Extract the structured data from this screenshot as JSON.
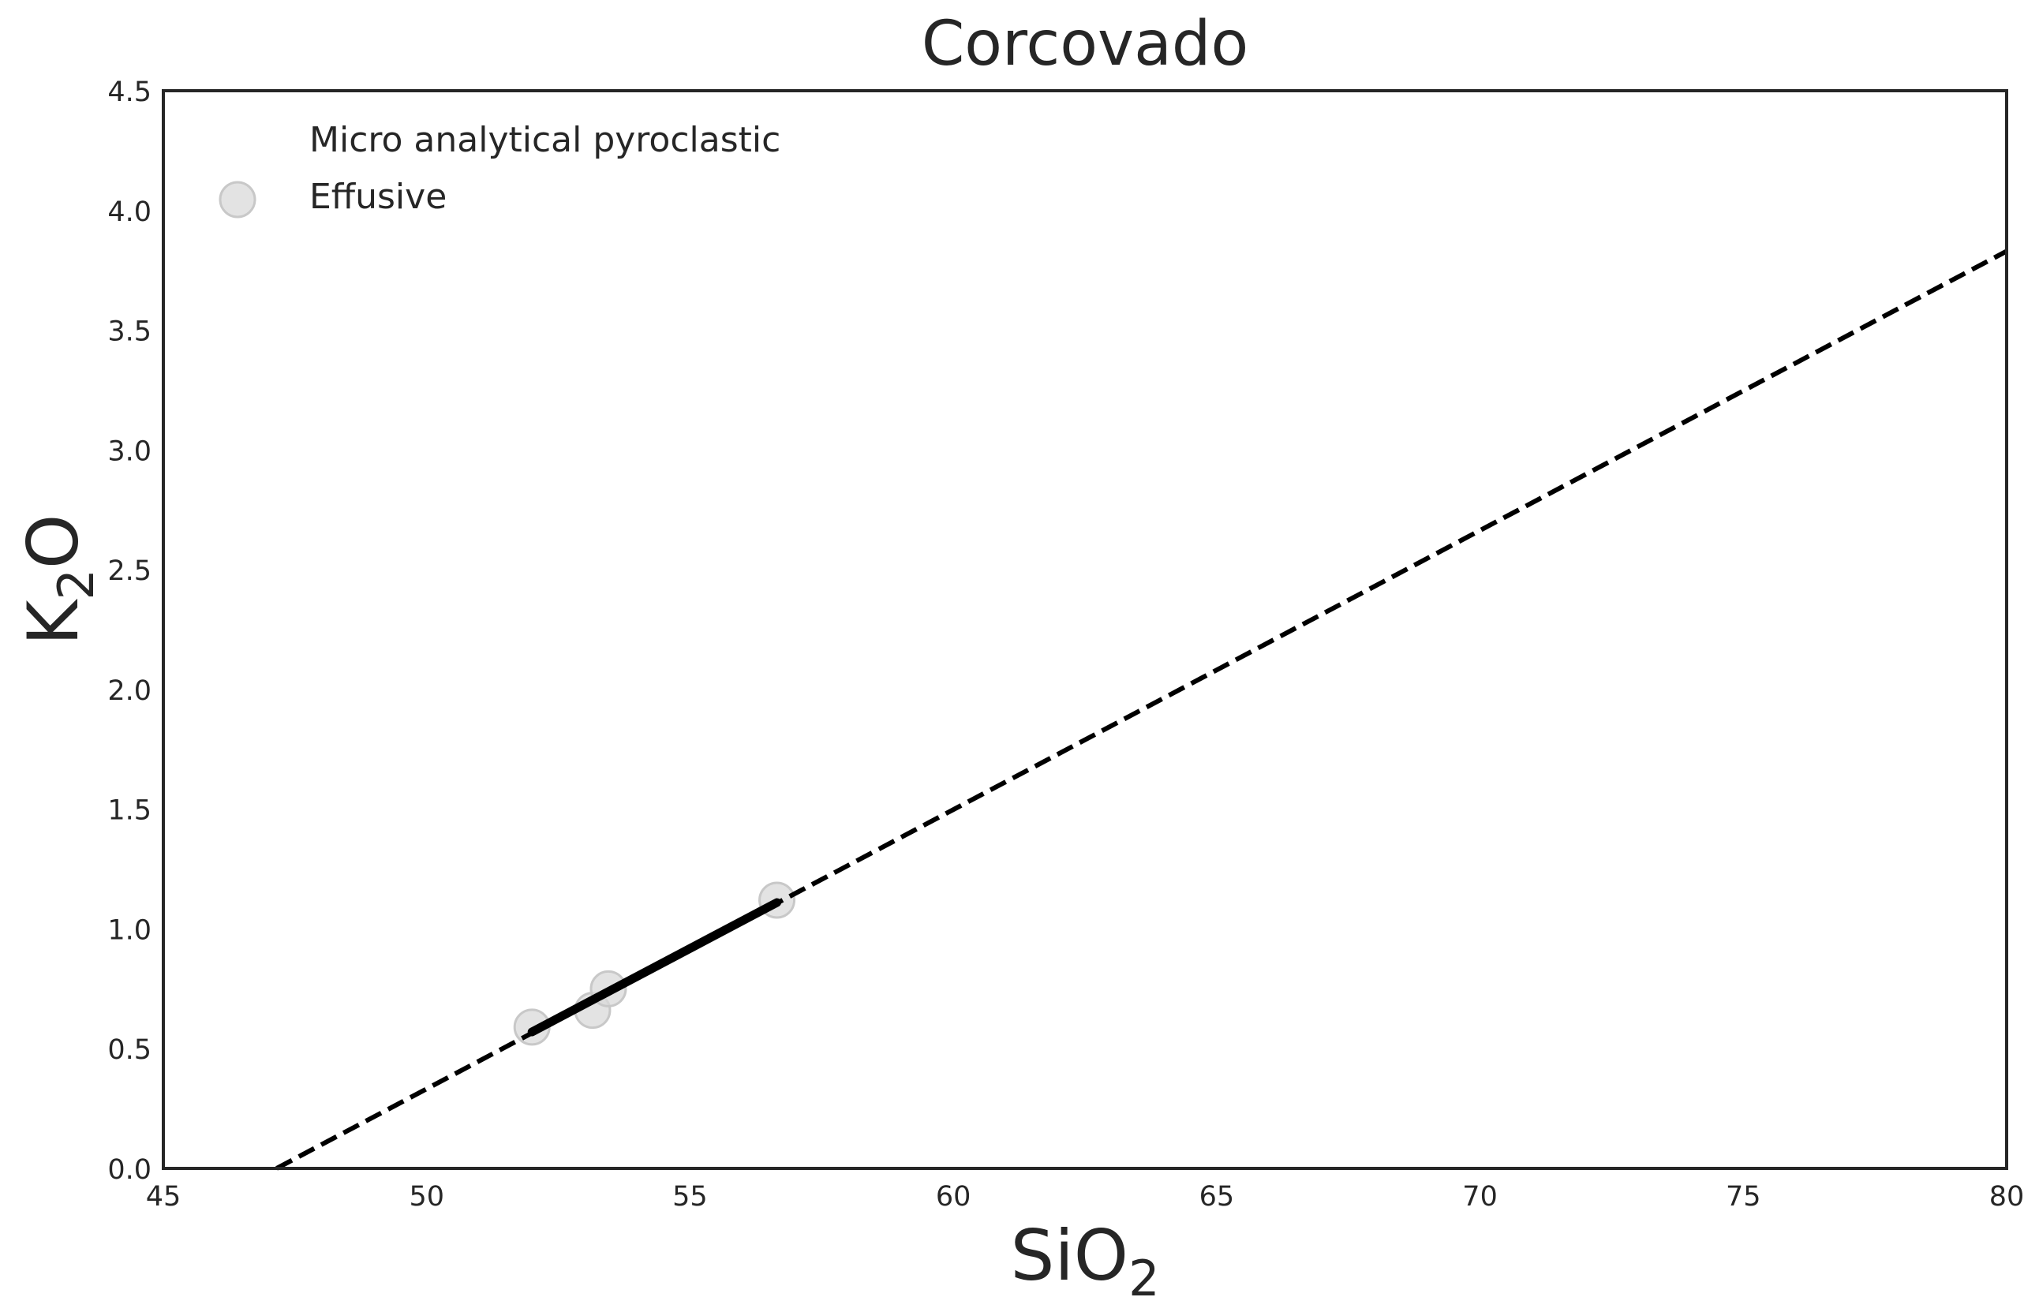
{
  "chart_data": {
    "type": "scatter",
    "title": "Corcovado",
    "xlabel": "SiO",
    "xlabel_subscript": "2",
    "ylabel": "K",
    "ylabel_subscript": "2",
    "ylabel_suffix": "O",
    "xlim": [
      45,
      80
    ],
    "ylim": [
      0,
      4.5
    ],
    "xticks": [
      45,
      50,
      55,
      60,
      65,
      70,
      75,
      80
    ],
    "xtick_labels": [
      "45",
      "50",
      "55",
      "60",
      "65",
      "70",
      "75",
      "80"
    ],
    "yticks": [
      0,
      0.5,
      1,
      1.5,
      2,
      2.5,
      3,
      3.5,
      4,
      4.5
    ],
    "ytick_labels": [
      "0.0",
      "0.5",
      "1.0",
      "1.5",
      "2.0",
      "2.5",
      "3.0",
      "3.5",
      "4.0",
      "4.5"
    ],
    "grid": false,
    "legend_position": "top-left",
    "legend": [
      {
        "label": "Micro analytical pyroclastic",
        "marker": "none"
      },
      {
        "label": "Effusive",
        "marker": "circle",
        "color": "#d9d9d9"
      }
    ],
    "series": [
      {
        "name": "Micro analytical pyroclastic",
        "type": "scatter",
        "x": [],
        "y": []
      },
      {
        "name": "Effusive",
        "type": "scatter",
        "color": "#d9d9d9",
        "x": [
          52.0,
          53.15,
          53.45,
          56.65
        ],
        "y": [
          0.59,
          0.66,
          0.75,
          1.12
        ]
      }
    ],
    "lines": [
      {
        "style": "dashed",
        "color": "#000000",
        "x": [
          47.15,
          80
        ],
        "y": [
          0.0,
          3.83
        ]
      },
      {
        "style": "solid",
        "color": "#000000",
        "x": [
          52.0,
          56.65
        ],
        "y": [
          0.57,
          1.11
        ]
      }
    ]
  }
}
